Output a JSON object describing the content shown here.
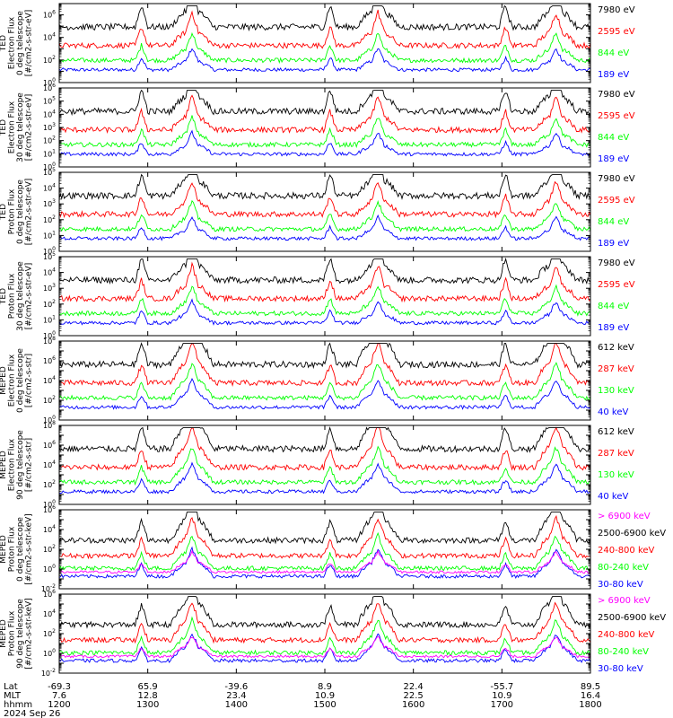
{
  "colors": {
    "blue": "#0000ff",
    "red": "#ff0000",
    "green": "#00ff00",
    "black": "#000000",
    "magenta": "#ff00ff"
  },
  "chart_data": {
    "type": "line",
    "time_hhmm": [
      "1200",
      "1300",
      "1400",
      "1500",
      "1600",
      "1700",
      "1800"
    ],
    "footer": {
      "row_labels": [
        "Lat",
        "MLT",
        "hhmm",
        "2024 Sep 26"
      ],
      "lat": [
        "-69.3",
        "65.9",
        "-39.6",
        "8.9",
        "22.4",
        "-55.7",
        "89.5"
      ],
      "mlt": [
        "7.6",
        "12.8",
        "23.4",
        "10.9",
        "22.5",
        "10.9",
        "16.4"
      ],
      "hhmm": [
        "1200",
        "1300",
        "1400",
        "1500",
        "1600",
        "1700",
        "1800"
      ]
    },
    "panels": [
      {
        "ylabel": [
          "TED",
          "Electron Flux",
          "0 deg telescope",
          "[#/cm2-s-str-eV]"
        ],
        "yscale": "log",
        "ylim_exp": [
          0,
          7
        ],
        "legend": [
          "7980 eV",
          "2595 eV",
          "844 eV",
          "189 eV"
        ],
        "legend_colors": [
          "black",
          "red",
          "green",
          "blue"
        ]
      },
      {
        "ylabel": [
          "TED",
          "Electron Flux",
          "30 deg telescope",
          "[#/cm2-s-str-eV]"
        ],
        "yscale": "log",
        "ylim_exp": [
          0,
          6
        ],
        "legend": [
          "7980 eV",
          "2595 eV",
          "844 eV",
          "189 eV"
        ],
        "legend_colors": [
          "black",
          "red",
          "green",
          "blue"
        ]
      },
      {
        "ylabel": [
          "TED",
          "Proton Flux",
          "0 deg telescope",
          "[#/cm2-s-str-eV]"
        ],
        "yscale": "log",
        "ylim_exp": [
          0,
          5
        ],
        "legend": [
          "7980 eV",
          "2595 eV",
          "844 eV",
          "189 eV"
        ],
        "legend_colors": [
          "black",
          "red",
          "green",
          "blue"
        ]
      },
      {
        "ylabel": [
          "TED",
          "Proton Flux",
          "30 deg telescope",
          "[#/cm2-s-str-eV]"
        ],
        "yscale": "log",
        "ylim_exp": [
          0,
          5
        ],
        "legend": [
          "7980 eV",
          "2595 eV",
          "844 eV",
          "189 eV"
        ],
        "legend_colors": [
          "black",
          "red",
          "green",
          "blue"
        ]
      },
      {
        "ylabel": [
          "MEPED",
          "Electron Flux",
          "0 deg telescope",
          "[#/cm2-s-str]"
        ],
        "yscale": "log",
        "ylim_exp": [
          0,
          8
        ],
        "legend": [
          "612 keV",
          "287 keV",
          "130 keV",
          "40 keV"
        ],
        "legend_colors": [
          "black",
          "red",
          "green",
          "blue"
        ]
      },
      {
        "ylabel": [
          "MEPED",
          "Electron Flux",
          "90 deg telescope",
          "[#/cm2-s-str]"
        ],
        "yscale": "log",
        "ylim_exp": [
          0,
          8
        ],
        "legend": [
          "612 keV",
          "287 keV",
          "130 keV",
          "40 keV"
        ],
        "legend_colors": [
          "black",
          "red",
          "green",
          "blue"
        ]
      },
      {
        "ylabel": [
          "MEPED",
          "Proton Flux",
          "0 deg telescope",
          "[#/cm2-s-str-keV]"
        ],
        "yscale": "log",
        "ylim_exp": [
          -2,
          6
        ],
        "legend": [
          "> 6900 keV",
          "2500-6900 keV",
          "240-800 keV",
          "80-240 keV",
          "30-80 keV"
        ],
        "legend_colors": [
          "magenta",
          "black",
          "red",
          "green",
          "blue"
        ]
      },
      {
        "ylabel": [
          "MEPED",
          "Proton Flux",
          "90 deg telescope",
          "[#/cm2-s-str-keV]"
        ],
        "yscale": "log",
        "ylim_exp": [
          -2,
          6
        ],
        "legend": [
          "> 6900 keV",
          "2500-6900 keV",
          "240-800 keV",
          "80-240 keV",
          "30-80 keV"
        ],
        "legend_colors": [
          "magenta",
          "black",
          "red",
          "green",
          "blue"
        ]
      }
    ]
  }
}
